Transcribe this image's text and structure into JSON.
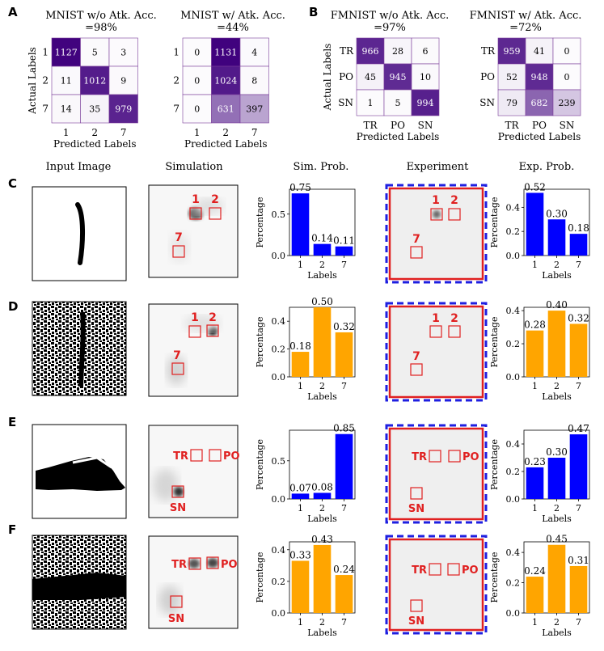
{
  "figure": {
    "panel_labels": [
      "A",
      "B",
      "C",
      "D",
      "E",
      "F"
    ],
    "column_headers": [
      "Input Image",
      "Simulation",
      "Sim. Prob.",
      "Experiment",
      "Exp. Prob."
    ]
  },
  "chart_data": [
    {
      "type": "heatmap",
      "id": "cm-mnist-clean",
      "title": "MNIST w/o Atk. Acc. =98%",
      "xlabel": "Predicted Labels",
      "ylabel": "Actual Labels",
      "labels": [
        "1",
        "2",
        "7"
      ],
      "matrix": [
        [
          1127,
          5,
          3
        ],
        [
          11,
          1012,
          9
        ],
        [
          14,
          35,
          979
        ]
      ]
    },
    {
      "type": "heatmap",
      "id": "cm-mnist-attack",
      "title": "MNIST w/ Atk. Acc. =44%",
      "xlabel": "Predicted Labels",
      "ylabel": "",
      "labels": [
        "1",
        "2",
        "7"
      ],
      "matrix": [
        [
          0,
          1131,
          4
        ],
        [
          0,
          1024,
          8
        ],
        [
          0,
          631,
          397
        ]
      ]
    },
    {
      "type": "heatmap",
      "id": "cm-fmnist-clean",
      "title": "FMNIST w/o Atk. Acc. =97%",
      "xlabel": "Predicted Labels",
      "ylabel": "Actual Labels",
      "labels": [
        "TR",
        "PO",
        "SN"
      ],
      "matrix": [
        [
          966,
          28,
          6
        ],
        [
          45,
          945,
          10
        ],
        [
          1,
          5,
          994
        ]
      ]
    },
    {
      "type": "heatmap",
      "id": "cm-fmnist-attack",
      "title": "FMNIST w/ Atk. Acc. =72%",
      "xlabel": "Predicted Labels",
      "ylabel": "",
      "labels": [
        "TR",
        "PO",
        "SN"
      ],
      "matrix": [
        [
          959,
          41,
          0
        ],
        [
          52,
          948,
          0
        ],
        [
          79,
          682,
          239
        ]
      ]
    },
    {
      "type": "bar",
      "id": "C-sim",
      "categories": [
        "1",
        "2",
        "7"
      ],
      "values": [
        0.75,
        0.14,
        0.11
      ],
      "labels": [
        "0.75",
        "0.14",
        "0.11"
      ],
      "color": "#0000ff",
      "ylim": [
        0,
        0.8
      ],
      "yticks": [
        "0.0",
        "0.5"
      ],
      "xlabel": "Labels",
      "ylabel": "Percentage"
    },
    {
      "type": "bar",
      "id": "C-exp",
      "categories": [
        "1",
        "2",
        "7"
      ],
      "values": [
        0.52,
        0.3,
        0.18
      ],
      "labels": [
        "0.52",
        "0.30",
        "0.18"
      ],
      "color": "#0000ff",
      "ylim": [
        0,
        0.55
      ],
      "yticks": [
        "0.0",
        "0.2",
        "0.4"
      ],
      "xlabel": "Labels",
      "ylabel": "Percentage"
    },
    {
      "type": "bar",
      "id": "D-sim",
      "categories": [
        "1",
        "2",
        "7"
      ],
      "values": [
        0.18,
        0.5,
        0.32
      ],
      "labels": [
        "0.18",
        "0.50",
        "0.32"
      ],
      "color": "#ffa500",
      "ylim": [
        0,
        0.5
      ],
      "yticks": [
        "0.0",
        "0.2",
        "0.4"
      ],
      "xlabel": "Labels",
      "ylabel": "Percentage"
    },
    {
      "type": "bar",
      "id": "D-exp",
      "categories": [
        "1",
        "2",
        "7"
      ],
      "values": [
        0.28,
        0.4,
        0.32
      ],
      "labels": [
        "0.28",
        "0.40",
        "0.32"
      ],
      "color": "#ffa500",
      "ylim": [
        0,
        0.42
      ],
      "yticks": [
        "0.0",
        "0.2",
        "0.4"
      ],
      "xlabel": "Labels",
      "ylabel": "Percentage"
    },
    {
      "type": "bar",
      "id": "E-sim",
      "categories": [
        "1",
        "2",
        "7"
      ],
      "values": [
        0.07,
        0.08,
        0.85
      ],
      "labels": [
        "0.07",
        "0.08",
        "0.85"
      ],
      "color": "#0000ff",
      "ylim": [
        0,
        0.9
      ],
      "yticks": [
        "0.0",
        "0.5"
      ],
      "xlabel": "Labels",
      "ylabel": "Percentage"
    },
    {
      "type": "bar",
      "id": "E-exp",
      "categories": [
        "1",
        "2",
        "7"
      ],
      "values": [
        0.23,
        0.3,
        0.47
      ],
      "labels": [
        "0.23",
        "0.30",
        "0.47"
      ],
      "color": "#0000ff",
      "ylim": [
        0,
        0.5
      ],
      "yticks": [
        "0.0",
        "0.2",
        "0.4"
      ],
      "xlabel": "Labels",
      "ylabel": "Percentage"
    },
    {
      "type": "bar",
      "id": "F-sim",
      "categories": [
        "1",
        "2",
        "7"
      ],
      "values": [
        0.33,
        0.43,
        0.24
      ],
      "labels": [
        "0.33",
        "0.43",
        "0.24"
      ],
      "color": "#ffa500",
      "ylim": [
        0,
        0.45
      ],
      "yticks": [
        "0.0",
        "0.2",
        "0.4"
      ],
      "xlabel": "Labels",
      "ylabel": "Percentage"
    },
    {
      "type": "bar",
      "id": "F-exp",
      "categories": [
        "1",
        "2",
        "7"
      ],
      "values": [
        0.24,
        0.45,
        0.31
      ],
      "labels": [
        "0.24",
        "0.45",
        "0.31"
      ],
      "color": "#ffa500",
      "ylim": [
        0,
        0.47
      ],
      "yticks": [
        "0.0",
        "0.2",
        "0.4"
      ],
      "xlabel": "Labels",
      "ylabel": "Percentage"
    }
  ],
  "detector_labels": {
    "C": [
      "1",
      "2",
      "7"
    ],
    "D": [
      "1",
      "2",
      "7"
    ],
    "E": [
      "TR",
      "PO",
      "SN"
    ],
    "F": [
      "TR",
      "PO",
      "SN"
    ]
  }
}
